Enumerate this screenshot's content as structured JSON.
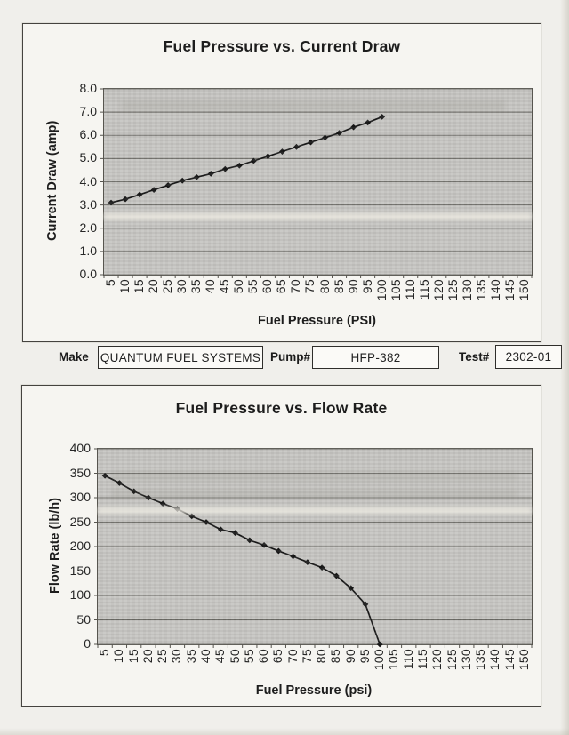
{
  "form": {
    "make_label": "Make",
    "make_value": "QUANTUM FUEL SYSTEMS",
    "pump_label": "Pump#",
    "pump_value": "HFP-382",
    "test_label": "Test#",
    "test_value": "2302-01"
  },
  "chart_data": [
    {
      "type": "line",
      "title": "Fuel Pressure vs. Current Draw",
      "xlabel": "Fuel Pressure (PSI)",
      "ylabel": "Current Draw (amp)",
      "x": [
        5,
        10,
        15,
        20,
        25,
        30,
        35,
        40,
        45,
        50,
        55,
        60,
        65,
        70,
        75,
        80,
        85,
        90,
        95,
        100
      ],
      "values": [
        3.1,
        3.25,
        3.45,
        3.65,
        3.85,
        4.05,
        4.2,
        4.35,
        4.55,
        4.7,
        4.9,
        5.1,
        5.3,
        5.5,
        5.7,
        5.9,
        6.1,
        6.35,
        6.55,
        6.8
      ],
      "xticks": [
        "5",
        "10",
        "15",
        "20",
        "25",
        "30",
        "35",
        "40",
        "45",
        "50",
        "55",
        "60",
        "65",
        "70",
        "75",
        "80",
        "85",
        "90",
        "95",
        "100",
        "105",
        "110",
        "115",
        "120",
        "125",
        "130",
        "135",
        "140",
        "145",
        "150"
      ],
      "yticks": [
        "0.0",
        "1.0",
        "2.0",
        "3.0",
        "4.0",
        "5.0",
        "6.0",
        "7.0",
        "8.0"
      ],
      "ylim": [
        0,
        8
      ],
      "xlim": [
        0,
        150
      ],
      "grid": true,
      "legend": "none",
      "marker": "diamond",
      "series_color": "#161616",
      "grid_color": "#6b6a65",
      "plot_bg": "#c6c5c2"
    },
    {
      "type": "line",
      "title": "Fuel Pressure vs. Flow Rate",
      "xlabel": "Fuel Pressure (psi)",
      "ylabel": "Flow Rate (lb/h)",
      "x": [
        5,
        10,
        15,
        20,
        25,
        30,
        35,
        40,
        45,
        50,
        55,
        60,
        65,
        70,
        75,
        80,
        85,
        90,
        95,
        100
      ],
      "values": [
        345,
        330,
        313,
        300,
        288,
        277,
        262,
        250,
        235,
        228,
        213,
        203,
        191,
        180,
        168,
        157,
        140,
        115,
        82,
        0
      ],
      "xticks": [
        "5",
        "10",
        "15",
        "20",
        "25",
        "30",
        "35",
        "40",
        "45",
        "50",
        "55",
        "60",
        "65",
        "70",
        "75",
        "80",
        "85",
        "90",
        "95",
        "100",
        "105",
        "110",
        "115",
        "120",
        "125",
        "130",
        "135",
        "140",
        "145",
        "150"
      ],
      "yticks": [
        "0",
        "50",
        "100",
        "150",
        "200",
        "250",
        "300",
        "350",
        "400"
      ],
      "ylim": [
        0,
        400
      ],
      "xlim": [
        0,
        150
      ],
      "grid": true,
      "legend": "none",
      "marker": "diamond",
      "series_color": "#161616",
      "grid_color": "#6b6a65",
      "plot_bg": "#c6c5c2"
    }
  ]
}
